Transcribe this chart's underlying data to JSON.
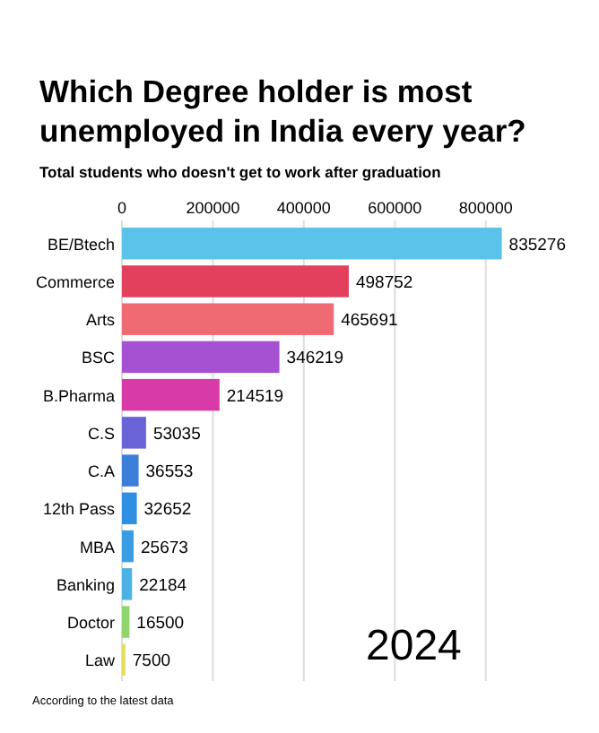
{
  "chart_data": {
    "type": "bar",
    "orientation": "horizontal",
    "title": "Which Degree holder is most unemployed in India every year?",
    "subtitle": "Total students who doesn't get to work after graduation",
    "categories": [
      "BE/Btech",
      "Commerce",
      "Arts",
      "BSC",
      "B.Pharma",
      "C.S",
      "C.A",
      "12th Pass",
      "MBA",
      "Banking",
      "Doctor",
      "Law"
    ],
    "values": [
      835276,
      498752,
      465691,
      346219,
      214519,
      53035,
      36553,
      32652,
      25673,
      22184,
      16500,
      7500
    ],
    "colors": [
      "#5bc2ea",
      "#e2405c",
      "#f06a74",
      "#a650d2",
      "#d83ba8",
      "#6a63d8",
      "#3b7fd8",
      "#2f8fe2",
      "#3a9de4",
      "#4cb2e4",
      "#8fd46c",
      "#e4de5c"
    ],
    "xlim": [
      0,
      840000
    ],
    "xticks": [
      0,
      200000,
      400000,
      600000,
      800000
    ],
    "grid": "x",
    "data_labels": true,
    "annotations": [
      "2024",
      "According to the latest data"
    ]
  }
}
